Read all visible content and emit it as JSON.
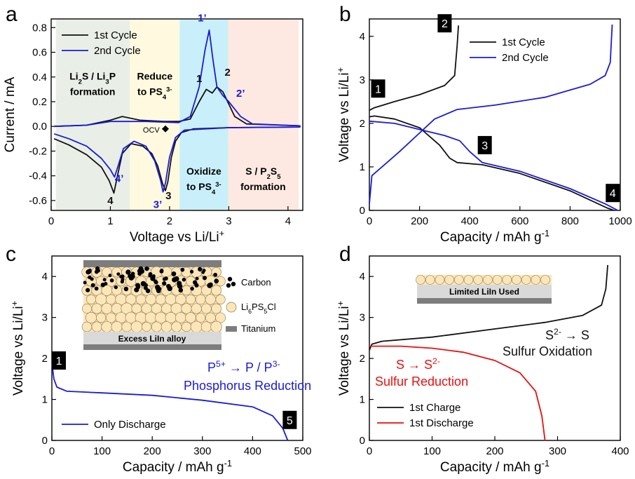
{
  "colors": {
    "cycle1": "#111111",
    "cycle2": "#1a1adb",
    "red": "#e81010",
    "zoneGreen": "#e9efe6",
    "zoneYellow": "#fff9df",
    "zoneCyan": "#c9f0fa",
    "zonePeach": "#fde9e1",
    "particle": "#fce6b8",
    "titanium": "#7d7d7d",
    "alloy": "#d9d9d9"
  },
  "panel_a": {
    "label": "a",
    "chart_data": {
      "type": "line",
      "xlabel": "Voltage vs Li/Li",
      "xlabel_sup": "+",
      "ylabel": "Current / mA",
      "xlim": [
        0,
        4.25
      ],
      "ylim": [
        -0.68,
        0.87
      ],
      "xticks": [
        "0",
        "1",
        "2",
        "3",
        "4"
      ],
      "yticks": [
        "-0.6",
        "-0.4",
        "-0.2",
        "0.0",
        "0.2",
        "0.4",
        "0.6",
        "0.8"
      ],
      "legend_position": "top-left",
      "series": [
        {
          "name": "1st Cycle",
          "color": "cycle1",
          "points": [
            [
              0.05,
              -0.1
            ],
            [
              0.3,
              -0.15
            ],
            [
              0.6,
              -0.23
            ],
            [
              0.85,
              -0.33
            ],
            [
              0.98,
              -0.44
            ],
            [
              1.06,
              -0.54
            ],
            [
              1.12,
              -0.4
            ],
            [
              1.2,
              -0.22
            ],
            [
              1.35,
              -0.14
            ],
            [
              1.55,
              -0.16
            ],
            [
              1.7,
              -0.22
            ],
            [
              1.8,
              -0.32
            ],
            [
              1.88,
              -0.46
            ],
            [
              1.93,
              -0.52
            ],
            [
              1.97,
              -0.45
            ],
            [
              2.03,
              -0.25
            ],
            [
              2.1,
              -0.12
            ],
            [
              2.2,
              -0.05
            ],
            [
              2.4,
              -0.02
            ],
            [
              3.0,
              -0.01
            ],
            [
              4.2,
              -0.005
            ],
            [
              4.2,
              0.005
            ],
            [
              3.3,
              0.02
            ],
            [
              3.1,
              0.08
            ],
            [
              2.9,
              0.28
            ],
            [
              2.8,
              0.32
            ],
            [
              2.72,
              0.27
            ],
            [
              2.62,
              0.3
            ],
            [
              2.5,
              0.2
            ],
            [
              2.35,
              0.06
            ],
            [
              2.15,
              0.04
            ],
            [
              1.9,
              0.04
            ],
            [
              1.5,
              0.05
            ],
            [
              1.2,
              0.08
            ],
            [
              1.0,
              0.05
            ],
            [
              0.6,
              0.01
            ],
            [
              0.05,
              0.0
            ]
          ]
        },
        {
          "name": "2nd Cycle",
          "color": "cycle2",
          "points": [
            [
              0.05,
              -0.06
            ],
            [
              0.3,
              -0.1
            ],
            [
              0.6,
              -0.16
            ],
            [
              0.85,
              -0.26
            ],
            [
              1.0,
              -0.35
            ],
            [
              1.07,
              -0.41
            ],
            [
              1.13,
              -0.32
            ],
            [
              1.22,
              -0.18
            ],
            [
              1.4,
              -0.12
            ],
            [
              1.6,
              -0.16
            ],
            [
              1.75,
              -0.28
            ],
            [
              1.85,
              -0.44
            ],
            [
              1.89,
              -0.53
            ],
            [
              1.93,
              -0.46
            ],
            [
              2.0,
              -0.25
            ],
            [
              2.1,
              -0.09
            ],
            [
              2.25,
              -0.03
            ],
            [
              3.0,
              -0.01
            ],
            [
              4.2,
              -0.005
            ],
            [
              4.2,
              0.005
            ],
            [
              3.4,
              0.02
            ],
            [
              3.2,
              0.08
            ],
            [
              3.0,
              0.2
            ],
            [
              2.9,
              0.25
            ],
            [
              2.8,
              0.32
            ],
            [
              2.73,
              0.55
            ],
            [
              2.67,
              0.78
            ],
            [
              2.6,
              0.62
            ],
            [
              2.5,
              0.32
            ],
            [
              2.35,
              0.08
            ],
            [
              2.15,
              0.03
            ],
            [
              1.6,
              0.04
            ],
            [
              1.0,
              0.04
            ],
            [
              0.6,
              0.01
            ],
            [
              0.05,
              0.0
            ]
          ]
        }
      ],
      "zones": [
        {
          "x0": 0.08,
          "x1": 1.33,
          "fill": "zoneGreen"
        },
        {
          "x0": 1.33,
          "x1": 2.17,
          "fill": "zoneYellow"
        },
        {
          "x0": 2.17,
          "x1": 2.99,
          "fill": "zoneCyan"
        },
        {
          "x0": 2.99,
          "x1": 4.18,
          "fill": "zonePeach"
        }
      ],
      "zone_labels": [
        {
          "x": 0.7,
          "y": 0.38,
          "lines": [
            {
              "text": "Li",
              "sub": "2",
              "rest": "S / Li",
              "sub2": "3",
              "rest2": "P"
            },
            {
              "text": "formation"
            }
          ]
        },
        {
          "x": 1.75,
          "y": 0.38,
          "lines": [
            {
              "text": "Reduce"
            },
            {
              "text": "to PS",
              "sub": "4",
              "sup": "3-"
            }
          ]
        },
        {
          "x": 2.58,
          "y": -0.39,
          "lines": [
            {
              "text": "Oxidize"
            },
            {
              "text": "to PS",
              "sub": "4",
              "sup": "3-"
            }
          ]
        },
        {
          "x": 3.58,
          "y": -0.39,
          "lines": [
            {
              "text": "S / P",
              "sub": "2",
              "rest": "S",
              "sub2": "5"
            },
            {
              "text": "formation"
            }
          ]
        }
      ],
      "peak_labels": [
        {
          "text": "1",
          "x": 2.5,
          "y": 0.36,
          "color": "cycle1"
        },
        {
          "text": "2",
          "x": 2.98,
          "y": 0.41,
          "color": "cycle1"
        },
        {
          "text": "3",
          "x": 1.98,
          "y": -0.59,
          "color": "cycle1"
        },
        {
          "text": "4",
          "x": 1.0,
          "y": -0.63,
          "color": "cycle1"
        },
        {
          "text": "1’",
          "x": 2.55,
          "y": 0.85,
          "color": "cycle2"
        },
        {
          "text": "2’",
          "x": 3.2,
          "y": 0.24,
          "color": "cycle2"
        },
        {
          "text": "3’",
          "x": 1.8,
          "y": -0.66,
          "color": "cycle2"
        },
        {
          "text": "4’",
          "x": 1.15,
          "y": -0.45,
          "color": "cycle2"
        }
      ],
      "ocv_label": {
        "text": "OCV",
        "x": 1.55,
        "y": -0.02,
        "marker_x": 1.93
      }
    }
  },
  "panel_b": {
    "label": "b",
    "chart_data": {
      "type": "line",
      "xlabel": "Capacity / mAh g",
      "xlabel_sup": "-1",
      "ylabel": "Voltage vs Li/Li",
      "ylabel_sup": "+",
      "xlim": [
        0,
        1000
      ],
      "ylim": [
        0,
        4.4
      ],
      "xticks": [
        "0",
        "200",
        "400",
        "600",
        "800",
        "1000"
      ],
      "yticks": [
        "0",
        "1",
        "2",
        "3",
        "4"
      ],
      "legend_position": "top-right",
      "series": [
        {
          "name": "1st Cycle",
          "color": "cycle1",
          "curves": [
            [
              [
                0,
                2.15
              ],
              [
                20,
                2.17
              ],
              [
                100,
                2.1
              ],
              [
                200,
                1.9
              ],
              [
                280,
                1.5
              ],
              [
                320,
                1.2
              ],
              [
                350,
                1.1
              ],
              [
                450,
                1.05
              ],
              [
                600,
                0.85
              ],
              [
                800,
                0.45
              ],
              [
                950,
                0.05
              ],
              [
                975,
                0
              ]
            ],
            [
              [
                0,
                2.3
              ],
              [
                20,
                2.36
              ],
              [
                100,
                2.5
              ],
              [
                200,
                2.66
              ],
              [
                300,
                2.87
              ],
              [
                340,
                3.1
              ],
              [
                350,
                3.8
              ],
              [
                355,
                4.25
              ]
            ]
          ]
        },
        {
          "name": "2nd Cycle",
          "color": "cycle2",
          "curves": [
            [
              [
                0,
                2.05
              ],
              [
                100,
                2.0
              ],
              [
                200,
                1.86
              ],
              [
                300,
                1.72
              ],
              [
                360,
                1.6
              ],
              [
                400,
                1.35
              ],
              [
                450,
                1.1
              ],
              [
                600,
                0.9
              ],
              [
                800,
                0.5
              ],
              [
                940,
                0.15
              ],
              [
                990,
                0
              ]
            ],
            [
              [
                0,
                0.15
              ],
              [
                10,
                0.8
              ],
              [
                60,
                1.05
              ],
              [
                120,
                1.35
              ],
              [
                200,
                1.78
              ],
              [
                260,
                2.1
              ],
              [
                350,
                2.32
              ],
              [
                500,
                2.42
              ],
              [
                700,
                2.6
              ],
              [
                880,
                2.9
              ],
              [
                940,
                3.1
              ],
              [
                960,
                3.4
              ],
              [
                968,
                4.27
              ]
            ]
          ]
        }
      ],
      "markers": [
        {
          "text": "1",
          "x": 35,
          "y": 2.8
        },
        {
          "text": "2",
          "x": 300,
          "y": 4.3
        },
        {
          "text": "3",
          "x": 460,
          "y": 1.5
        },
        {
          "text": "4",
          "x": 970,
          "y": 0.4
        }
      ]
    }
  },
  "panel_c": {
    "label": "c",
    "chart_data": {
      "type": "line",
      "xlabel": "Capacity / mAh g",
      "xlabel_sup": "-1",
      "ylabel": "Voltage vs Li/Li",
      "ylabel_sup": "+",
      "xlim": [
        0,
        500
      ],
      "ylim": [
        0,
        4.5
      ],
      "xticks": [
        "0",
        "100",
        "200",
        "300",
        "400",
        "500"
      ],
      "yticks": [
        "0",
        "1",
        "2",
        "3",
        "4"
      ],
      "legend_position": "bottom-left",
      "series": [
        {
          "name": "Only Discharge",
          "color": "cycle2",
          "curves": [
            [
              [
                0,
                1.9
              ],
              [
                4,
                1.5
              ],
              [
                10,
                1.3
              ],
              [
                30,
                1.2
              ],
              [
                100,
                1.16
              ],
              [
                200,
                1.1
              ],
              [
                300,
                0.98
              ],
              [
                400,
                0.82
              ],
              [
                440,
                0.6
              ],
              [
                460,
                0.3
              ],
              [
                470,
                0
              ]
            ]
          ]
        }
      ],
      "markers": [
        {
          "text": "1",
          "x": 14,
          "y": 1.95
        },
        {
          "text": "5",
          "x": 474,
          "y": 0.5
        }
      ],
      "annotation": {
        "line1_a": "P",
        "line1_a_sup": "5+",
        "line1_b": "P / P",
        "line1_b_sup": "3-",
        "line2": "Phosphorus Reduction",
        "color": "cycle2"
      },
      "schematic": {
        "legend": [
          {
            "icon": "carbon",
            "text": "Carbon"
          },
          {
            "icon": "particle",
            "text": "Li",
            "sub": "6",
            "rest": "PS",
            "sub2": "5",
            "rest2": "Cl"
          },
          {
            "icon": "titanium",
            "text": "Titanium"
          }
        ],
        "alloy_label": "Excess LiIn alloy"
      }
    }
  },
  "panel_d": {
    "label": "d",
    "chart_data": {
      "type": "line",
      "xlabel": "Capacity / mAh g",
      "xlabel_sup": "-1",
      "ylabel": "Voltage vs Li/Li",
      "ylabel_sup": "+",
      "xlim": [
        0,
        400
      ],
      "ylim": [
        0,
        4.5
      ],
      "xticks": [
        "0",
        "100",
        "200",
        "300",
        "400"
      ],
      "yticks": [
        "0",
        "1",
        "2",
        "3",
        "4"
      ],
      "legend_position": "bottom-left",
      "series": [
        {
          "name": "1st Charge",
          "color": "cycle1",
          "curves": [
            [
              [
                0,
                2.2
              ],
              [
                4,
                2.35
              ],
              [
                20,
                2.42
              ],
              [
                100,
                2.52
              ],
              [
                200,
                2.72
              ],
              [
                280,
                2.88
              ],
              [
                340,
                3.05
              ],
              [
                370,
                3.3
              ],
              [
                377,
                3.7
              ],
              [
                380,
                4.28
              ]
            ]
          ]
        },
        {
          "name": "1st Discharge",
          "color": "red",
          "curves": [
            [
              [
                0,
                2.3
              ],
              [
                50,
                2.3
              ],
              [
                100,
                2.25
              ],
              [
                150,
                2.15
              ],
              [
                200,
                1.95
              ],
              [
                240,
                1.65
              ],
              [
                265,
                1.2
              ],
              [
                275,
                0.6
              ],
              [
                280,
                0
              ]
            ]
          ]
        }
      ],
      "ox_annotation": {
        "a": "S",
        "a_sup": "2-",
        "b": "S",
        "line2": "Sulfur Oxidation",
        "color": "cycle1"
      },
      "red_annotation": {
        "a": "S",
        "b": "S",
        "b_sup": "2-",
        "line2": "Sulfur Reduction",
        "color": "red"
      },
      "schematic": {
        "label": "Limited LiIn Used"
      }
    }
  }
}
